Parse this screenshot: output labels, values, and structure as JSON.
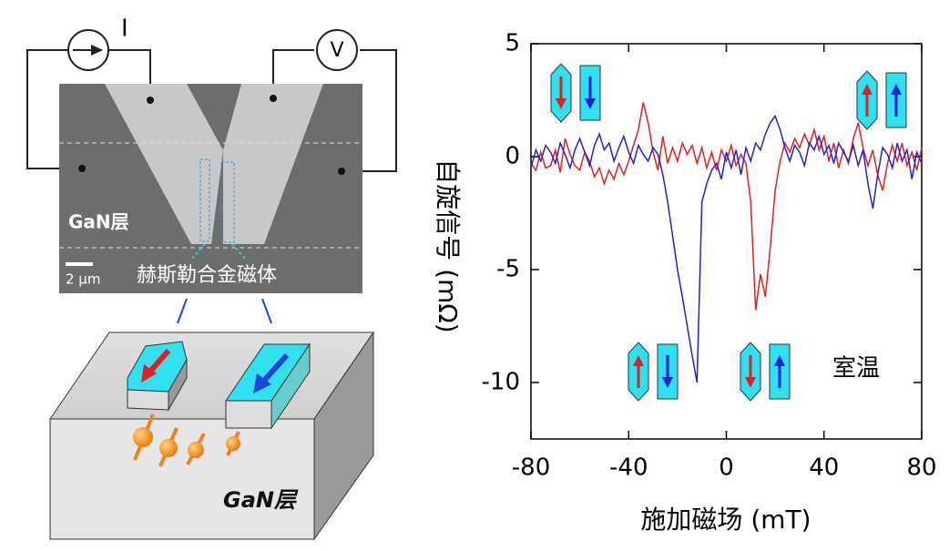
{
  "diagram": {
    "current_label": "I",
    "voltage_label": "V",
    "sem_layer_label": "GaN层",
    "scale_bar": "2 µm",
    "magnet_label": "赫斯勒合金磁体",
    "block_label": "GaN层"
  },
  "chart_data": {
    "type": "line",
    "xlabel": "施加磁场 (mT)",
    "ylabel": "自旋信号 (mΩ)",
    "annotation": "室温",
    "xlim": [
      -80,
      80
    ],
    "xticks": [
      -80,
      -40,
      0,
      40,
      80
    ],
    "ylim": [
      -12.5,
      5
    ],
    "yticks": [
      5,
      0,
      -5,
      -10
    ],
    "x": [
      -80,
      -78,
      -76,
      -74,
      -72,
      -70,
      -68,
      -66,
      -64,
      -62,
      -60,
      -58,
      -56,
      -54,
      -52,
      -50,
      -48,
      -46,
      -44,
      -42,
      -40,
      -38,
      -36,
      -34,
      -32,
      -30,
      -28,
      -26,
      -24,
      -22,
      -20,
      -18,
      -16,
      -14,
      -12,
      -10,
      -8,
      -6,
      -4,
      -2,
      0,
      2,
      4,
      6,
      8,
      10,
      12,
      14,
      16,
      18,
      20,
      22,
      24,
      26,
      28,
      30,
      32,
      34,
      36,
      38,
      40,
      42,
      44,
      46,
      48,
      50,
      52,
      54,
      56,
      58,
      60,
      62,
      64,
      66,
      68,
      70,
      72,
      74,
      76,
      78,
      80
    ],
    "series": [
      {
        "color": "#2222cc",
        "values": [
          -0.5,
          0.3,
          -0.2,
          0.5,
          0.2,
          -0.3,
          0.6,
          0.1,
          -0.5,
          0.3,
          0.8,
          0.2,
          -0.4,
          0.5,
          1.0,
          0.3,
          0.6,
          -0.2,
          0.4,
          0.9,
          0.2,
          -0.3,
          0.5,
          0.1,
          -0.2,
          0.4,
          0.1,
          -0.8,
          -2,
          -3.5,
          -5,
          -6.2,
          -7.5,
          -8.8,
          -10,
          -2,
          -1.2,
          -0.6,
          -0.3,
          -1.0,
          0.2,
          -0.5,
          0.3,
          -0.8,
          0.4,
          -0.2,
          0.6,
          0.3,
          1.0,
          1.5,
          1.8,
          1.2,
          0.4,
          -0.2,
          0.5,
          0.2,
          -0.4,
          0.6,
          0.3,
          0.9,
          0.1,
          0.5,
          -0.3,
          0.6,
          0.2,
          -0.2,
          0.5,
          -0.4,
          0.3,
          -1.2,
          -2.3,
          -0.8,
          0.4,
          0.1,
          -0.5,
          0.6,
          -0.2,
          0.3,
          -1.0,
          0.2,
          -0.3
        ]
      },
      {
        "color": "#e02020",
        "values": [
          -0.3,
          -0.6,
          0.2,
          -0.5,
          -0.4,
          0.3,
          -0.7,
          0.8,
          0.1,
          -0.4,
          -0.6,
          0.2,
          -0.2,
          -0.9,
          -0.5,
          -1.2,
          -0.6,
          -1.0,
          -0.3,
          -0.8,
          -0.2,
          0.5,
          1.2,
          2.4,
          1.5,
          0.2,
          -0.6,
          0.9,
          -0.3,
          0.4,
          -0.2,
          0.6,
          0.1,
          0.5,
          -0.3,
          0.4,
          -0.5,
          0.2,
          -0.6,
          0.3,
          -0.2,
          0.5,
          -0.4,
          0.1,
          -0.3,
          -2.0,
          -6.8,
          -5.2,
          -6.2,
          -4.0,
          -1.5,
          -0.2,
          0.6,
          0.2,
          0.8,
          0.4,
          1.0,
          0.5,
          1.2,
          0.3,
          0.9,
          -0.2,
          0.6,
          -0.5,
          0.3,
          -0.3,
          0.8,
          1.5,
          0.4,
          -0.4,
          0.3,
          -0.8,
          -1.5,
          -0.3,
          0.5,
          -0.2,
          0.6,
          -0.4,
          0.2,
          -0.6,
          0.4
        ]
      }
    ]
  }
}
